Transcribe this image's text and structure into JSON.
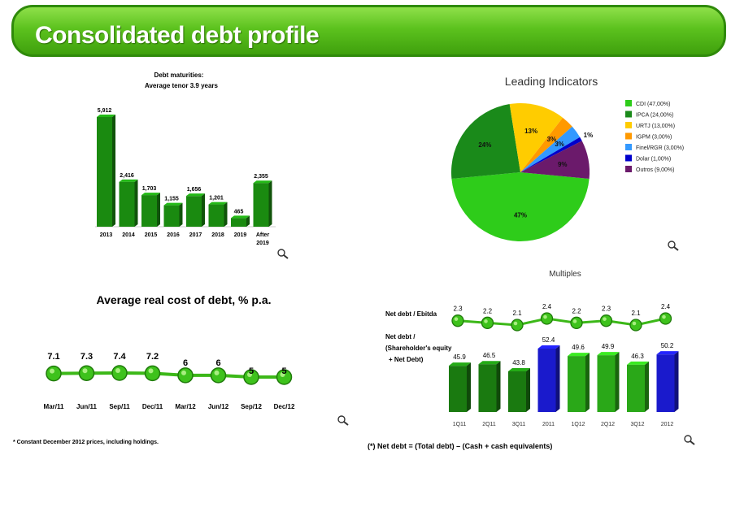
{
  "title": "Consolidated debt profile",
  "zoom_icon": "magnifier-icon",
  "debt_maturities": {
    "title_line1": "Debt maturities:",
    "title_line2": "Average tenor 3.9 years"
  },
  "leading": {
    "title": "Leading Indicators"
  },
  "avg_cost": {
    "title": "Average real cost of debt, % p.a.",
    "footnote": "* Constant December 2012 prices, including holdings."
  },
  "multiples": {
    "title": "Multiples",
    "ebitda_label": "Net debt / Ebitda",
    "equity_label_1": "Net debt /",
    "equity_label_2": "(Shareholder's equity",
    "equity_label_3": "+ Net Debt)",
    "formula": "(*) Net debt = (Total debt) – (Cash + cash equivalents)"
  },
  "chart_data": [
    {
      "type": "bar",
      "title": "Debt maturities: Average tenor 3.9 years",
      "categories": [
        "2013",
        "2014",
        "2015",
        "2016",
        "2017",
        "2018",
        "2019",
        "After 2019"
      ],
      "values": [
        5912,
        2416,
        1703,
        1155,
        1656,
        1201,
        465,
        2355
      ],
      "value_labels": [
        "5,912",
        "2,416",
        "1,703",
        "1,155",
        "1,656",
        "1,201",
        "465",
        "2,355"
      ],
      "color": "#1a8a10"
    },
    {
      "type": "pie",
      "title": "Leading Indicators",
      "slices": [
        {
          "name": "CDI (47,00%)",
          "value": 47,
          "label": "47%",
          "color": "#2ecc1a"
        },
        {
          "name": "IPCA (24,00%)",
          "value": 24,
          "label": "24%",
          "color": "#1a8a1a"
        },
        {
          "name": "URTJ (13,00%)",
          "value": 13,
          "label": "13%",
          "color": "#ffcc00"
        },
        {
          "name": "IGPM (3,00%)",
          "value": 3,
          "label": "3%",
          "color": "#ff9900"
        },
        {
          "name": "Finel/RGR (3,00%)",
          "value": 3,
          "label": "3%",
          "color": "#3399ff"
        },
        {
          "name": "Dolar (1,00%)",
          "value": 1,
          "label": "1%",
          "color": "#0000cc"
        },
        {
          "name": "Outros (9,00%)",
          "value": 9,
          "label": "9%",
          "color": "#6b1a6b"
        }
      ],
      "legend": "right"
    },
    {
      "type": "line",
      "title": "Average real cost of debt, % p.a.",
      "categories": [
        "Mar/11",
        "Jun/11",
        "Sep/11",
        "Dec/11",
        "Mar/12",
        "Jun/12",
        "Sep/12",
        "Dec/12"
      ],
      "values": [
        7.1,
        7.3,
        7.4,
        7.2,
        6,
        6,
        5,
        5
      ],
      "value_labels": [
        "7.1",
        "7.3",
        "7.4",
        "7.2",
        "6",
        "6",
        "5",
        "5"
      ],
      "color": "#3cb818"
    },
    {
      "type": "bar",
      "title": "Multiples",
      "categories": [
        "1Q11",
        "2Q11",
        "3Q11",
        "2011",
        "1Q12",
        "2Q12",
        "3Q12",
        "2012"
      ],
      "series": [
        {
          "name": "Net debt / Ebitda",
          "type": "line",
          "values": [
            2.3,
            2.2,
            2.1,
            2.4,
            2.2,
            2.3,
            2.1,
            2.4
          ],
          "value_labels": [
            "2.3",
            "2.2",
            "2.1",
            "2.4",
            "2.2",
            "2.3",
            "2.1",
            "2.4"
          ]
        },
        {
          "name": "Net debt / (Shareholder's equity + Net Debt)",
          "type": "bar",
          "values": [
            45.9,
            46.5,
            43.8,
            52.4,
            49.6,
            49.9,
            46.3,
            50.2
          ],
          "value_labels": [
            "45.9",
            "46.5",
            "43.8",
            "52.4",
            "49.6",
            "49.9",
            "46.3",
            "50.2"
          ]
        }
      ],
      "bar_colors": [
        "#1a7a10",
        "#1a7a10",
        "#1a7a10",
        "#1a1acc",
        "#2aa818",
        "#2aa818",
        "#2aa818",
        "#1a1acc"
      ]
    }
  ]
}
